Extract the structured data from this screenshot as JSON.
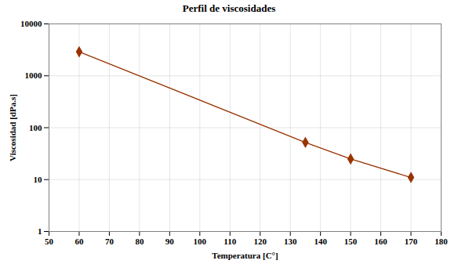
{
  "chart_data": {
    "type": "line",
    "title": "Perfil de viscosidades",
    "x_label": "Temperatura [C°]",
    "y_label": "Viscosidad [dPa.s]",
    "x": [
      60,
      135,
      150,
      170
    ],
    "values": [
      2900,
      52,
      25,
      11
    ],
    "color": "#993300",
    "marker": "diamond",
    "xlim": [
      50,
      180
    ],
    "xticks": [
      50,
      60,
      70,
      80,
      90,
      100,
      110,
      120,
      130,
      140,
      150,
      160,
      170,
      180
    ],
    "ylim": [
      1,
      10000
    ],
    "yticks": [
      1,
      10,
      100,
      1000,
      10000
    ],
    "log": "y",
    "grid": true
  }
}
